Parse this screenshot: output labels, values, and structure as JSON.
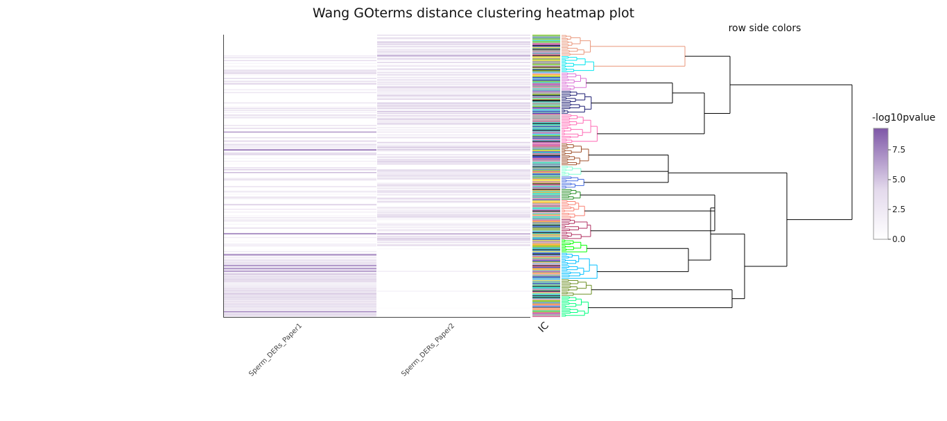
{
  "chart_data": {
    "type": "heatmap",
    "title": "Wang GOterms distance clustering heatmap plot",
    "side_colors_title": "row side colors",
    "columns": [
      "Sperm_DERs_Paper1",
      "Sperm_DERs_Paper2"
    ],
    "side_column_label": "IC",
    "colorbar": {
      "title": "-log10pvalue",
      "range": [
        0,
        9.3
      ],
      "ticks": [
        {
          "value": 0,
          "label": "0.0"
        },
        {
          "value": 2.5,
          "label": "2.5"
        },
        {
          "value": 5,
          "label": "5.0"
        },
        {
          "value": 7.5,
          "label": "7.5"
        }
      ],
      "low_color": "#ffffff",
      "mid_color": "#d4c4e0",
      "high_color": "#7e57a7"
    },
    "rows_estimated": 300,
    "cluster_colors": [
      "#e9967a",
      "#00e5ee",
      "#da70d6",
      "#191970",
      "#ff69b4",
      "#a0522d",
      "#7fffd4",
      "#4169e1",
      "#228b22",
      "#fa8072",
      "#b03060",
      "#00ff00",
      "#00bfff",
      "#6b8e23",
      "#00ff7f"
    ],
    "cluster_row_fractions": [
      0.072,
      0.056,
      0.062,
      0.08,
      0.099,
      0.076,
      0.036,
      0.043,
      0.038,
      0.064,
      0.07,
      0.045,
      0.09,
      0.058,
      0.071
    ]
  }
}
